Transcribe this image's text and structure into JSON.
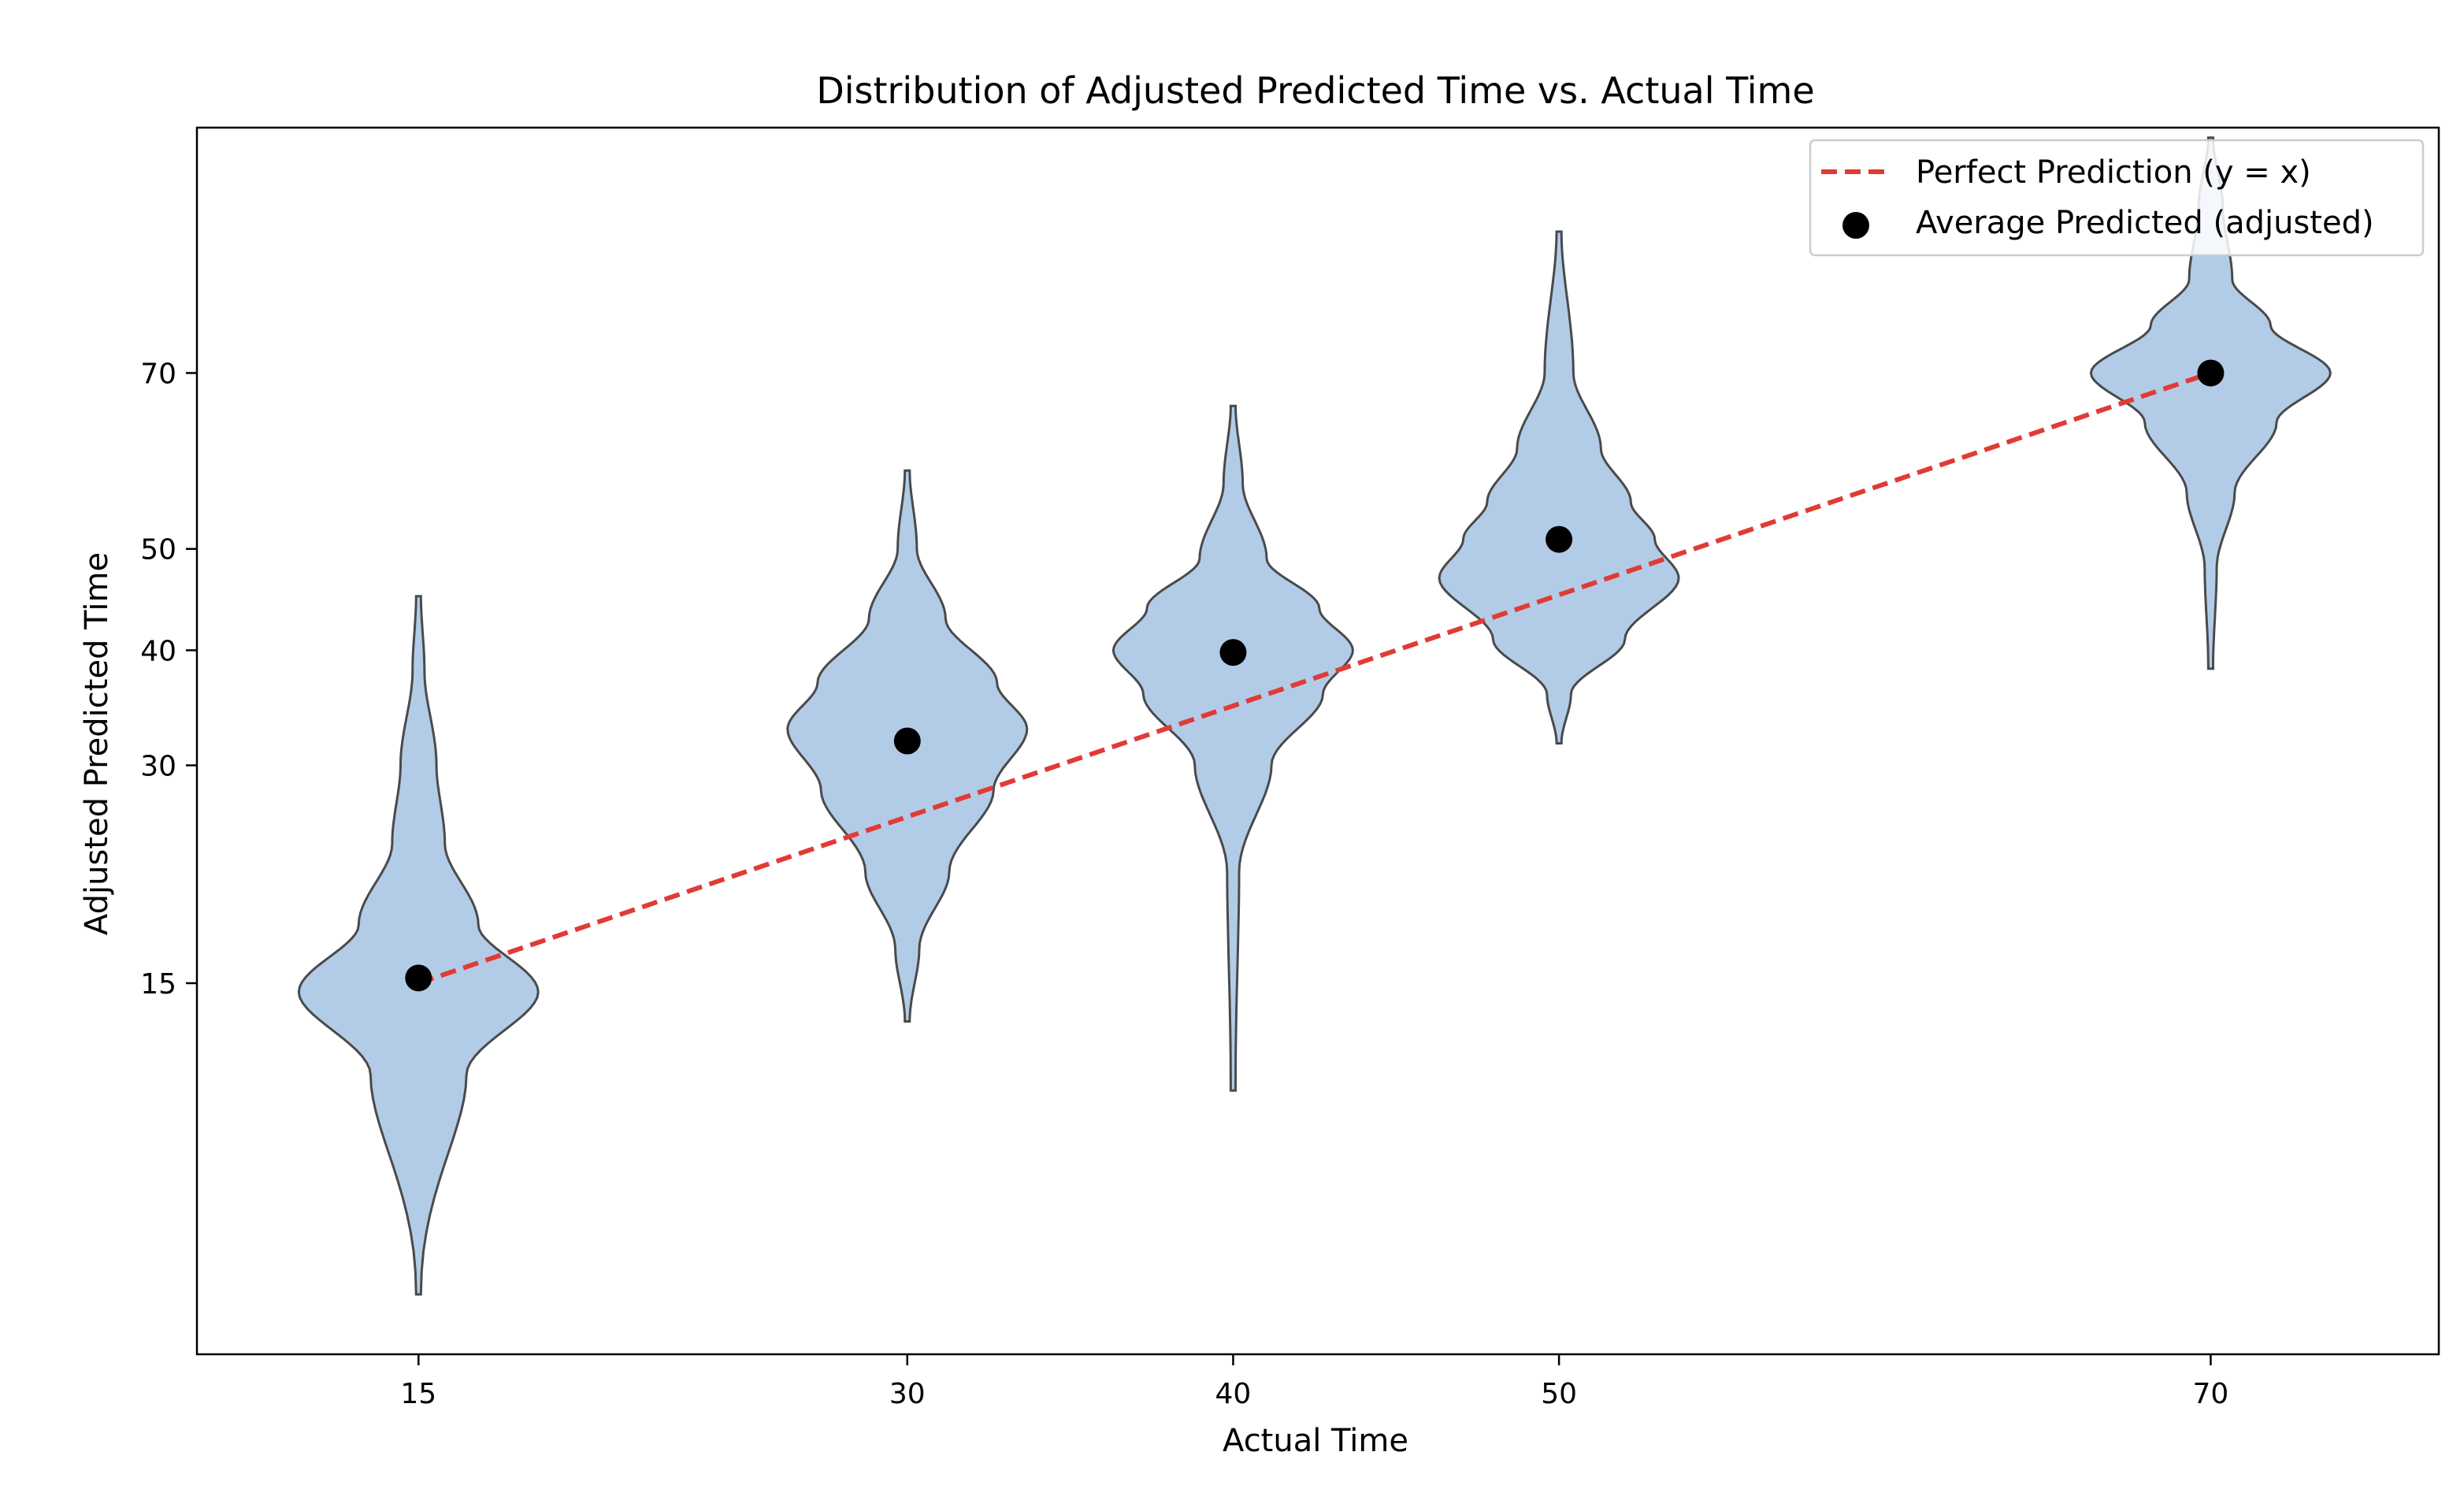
{
  "chart_data": {
    "type": "violin",
    "title": "Distribution of Adjusted Predicted Time vs. Actual Time",
    "xlabel": "Actual Time",
    "ylabel": "Adjusted Predicted Time",
    "x_ticks": [
      15,
      30,
      40,
      50,
      70
    ],
    "y_ticks": [
      15,
      30,
      40,
      50,
      70
    ],
    "y_scale": "sqrt",
    "xlim": [
      8.2,
      77.0
    ],
    "ylim": [
      1.3,
      103.5
    ],
    "grid": false,
    "legend": {
      "position": "top-right",
      "entries": [
        {
          "label": "Perfect Prediction (y = x)",
          "kind": "line"
        },
        {
          "label": "Average Predicted (adjusted)",
          "kind": "marker"
        }
      ]
    },
    "colors": {
      "violin_fill": "#b2cce8",
      "violin_edge": "#4a4a4a",
      "diagonal": "#e03b35",
      "mean_marker": "#000000"
    },
    "violins": [
      {
        "actual": 15,
        "mean_predicted": 15.3,
        "min": 2.5,
        "max": 45.2,
        "mode": 14.5,
        "widths": [
          0.02,
          0.4,
          1.0,
          0.5,
          0.22,
          0.15,
          0.05,
          0.02
        ],
        "width_at": [
          2.5,
          10.2,
          14.5,
          18.5,
          24,
          30,
          38,
          45.2
        ]
      },
      {
        "actual": 30,
        "mean_predicted": 32.0,
        "min": 12.9,
        "max": 58.5,
        "mode": 33.0,
        "widths": [
          0.02,
          0.1,
          0.35,
          0.72,
          1.0,
          0.75,
          0.32,
          0.08,
          0.02
        ],
        "width_at": [
          12.9,
          17,
          22,
          28,
          33,
          37,
          43,
          50,
          58.5
        ]
      },
      {
        "actual": 40,
        "mean_predicted": 39.8,
        "min": 9.5,
        "max": 66.0,
        "mode": 40.0,
        "widths": [
          0.02,
          0.05,
          0.32,
          0.75,
          1.0,
          0.72,
          0.28,
          0.08,
          0.02
        ],
        "width_at": [
          9.5,
          22,
          30,
          36,
          40,
          44,
          49,
          57,
          66
        ]
      },
      {
        "actual": 50,
        "mean_predicted": 51.0,
        "min": 31.8,
        "max": 88.5,
        "mode": 47.5,
        "widths": [
          0.02,
          0.1,
          0.55,
          1.0,
          0.8,
          0.6,
          0.35,
          0.12,
          0.02
        ],
        "width_at": [
          31.8,
          36,
          41,
          47,
          51,
          55,
          61,
          70,
          88.5
        ]
      },
      {
        "actual": 70,
        "mean_predicted": 70.0,
        "min": 38.3,
        "max": 102.0,
        "mode": 70.0,
        "widths": [
          0.02,
          0.05,
          0.2,
          0.55,
          1.0,
          0.5,
          0.18,
          0.1,
          0.02
        ],
        "width_at": [
          38.3,
          48,
          56,
          64,
          70,
          76,
          82,
          92,
          102
        ]
      }
    ]
  }
}
